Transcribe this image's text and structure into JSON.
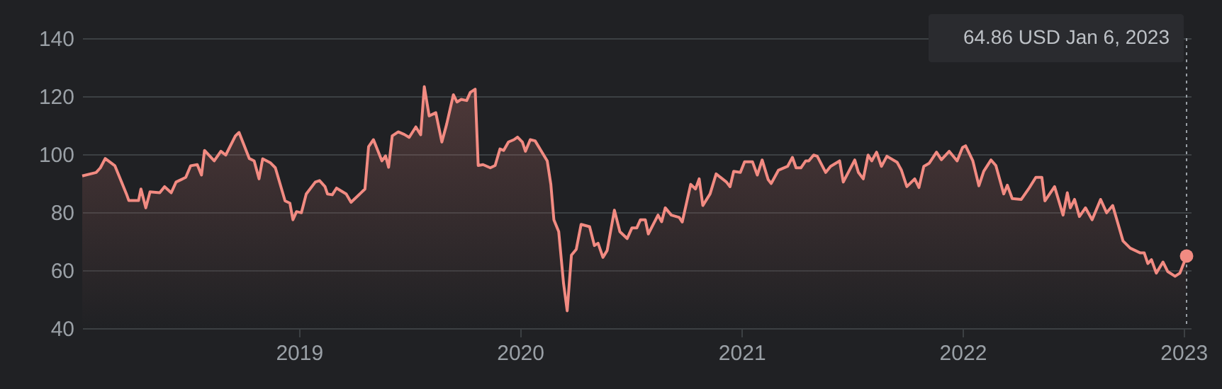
{
  "chart_data": {
    "type": "area",
    "color": "#f28b82",
    "grid": "y",
    "xlim": [
      "2018-01-08",
      "2023-01-13"
    ],
    "xticks": [
      "2019",
      "2020",
      "2021",
      "2022",
      "2023"
    ],
    "ylim": [
      40,
      140
    ],
    "yticks": [
      40,
      60,
      80,
      100,
      120,
      140
    ],
    "x": [
      "2018-01-08",
      "2018-01-31",
      "2018-02-07",
      "2018-02-15",
      "2018-03-03",
      "2018-03-22",
      "2018-03-26",
      "2018-04-11",
      "2018-04-15",
      "2018-04-23",
      "2018-04-30",
      "2018-05-16",
      "2018-05-24",
      "2018-06-04",
      "2018-06-12",
      "2018-06-28",
      "2018-07-06",
      "2018-07-17",
      "2018-07-24",
      "2018-07-29",
      "2018-08-14",
      "2018-08-25",
      "2018-09-02",
      "2018-09-18",
      "2018-09-24",
      "2018-10-11",
      "2018-10-19",
      "2018-10-27",
      "2018-11-02",
      "2018-11-15",
      "2018-11-23",
      "2018-12-09",
      "2018-12-17",
      "2018-12-22",
      "2018-12-28",
      "2019-01-05",
      "2019-01-13",
      "2019-01-28",
      "2019-02-04",
      "2019-02-13",
      "2019-02-17",
      "2019-02-25",
      "2019-03-04",
      "2019-03-20",
      "2019-03-28",
      "2019-04-20",
      "2019-04-26",
      "2019-05-04",
      "2019-05-18",
      "2019-05-24",
      "2019-05-29",
      "2019-06-04",
      "2019-06-14",
      "2019-06-24",
      "2019-07-02",
      "2019-07-13",
      "2019-07-21",
      "2019-07-27",
      "2019-08-04",
      "2019-08-15",
      "2019-08-25",
      "2019-09-02",
      "2019-09-13",
      "2019-09-19",
      "2019-09-26",
      "2019-10-05",
      "2019-10-11",
      "2019-10-19",
      "2019-10-24",
      "2019-11-01",
      "2019-11-13",
      "2019-11-21",
      "2019-11-29",
      "2019-12-05",
      "2019-12-13",
      "2019-12-22",
      "2019-12-28",
      "2020-01-05",
      "2020-01-10",
      "2020-01-18",
      "2020-01-26",
      "2020-02-15",
      "2020-02-21",
      "2020-02-26",
      "2020-03-05",
      "2020-03-13",
      "2020-03-19",
      "2020-03-26",
      "2020-04-03",
      "2020-04-11",
      "2020-04-25",
      "2020-05-03",
      "2020-05-09",
      "2020-05-17",
      "2020-05-24",
      "2020-06-05",
      "2020-06-14",
      "2020-06-26",
      "2020-07-04",
      "2020-07-12",
      "2020-07-18",
      "2020-07-26",
      "2020-07-31",
      "2020-08-16",
      "2020-08-22",
      "2020-08-28",
      "2020-09-07",
      "2020-09-20",
      "2020-09-25",
      "2020-10-09",
      "2020-10-17",
      "2020-10-23",
      "2020-10-29",
      "2020-11-10",
      "2020-11-20",
      "2020-12-07",
      "2020-12-13",
      "2020-12-19",
      "2020-12-30",
      "2021-01-06",
      "2021-01-19",
      "2021-01-27",
      "2021-02-04",
      "2021-02-14",
      "2021-02-19",
      "2021-03-03",
      "2021-03-18",
      "2021-03-26",
      "2021-04-01",
      "2021-04-09",
      "2021-04-17",
      "2021-04-22",
      "2021-04-30",
      "2021-05-06",
      "2021-05-20",
      "2021-05-28",
      "2021-06-12",
      "2021-06-18",
      "2021-07-07",
      "2021-07-13",
      "2021-07-21",
      "2021-07-29",
      "2021-08-04",
      "2021-08-12",
      "2021-08-20",
      "2021-08-29",
      "2021-09-15",
      "2021-09-22",
      "2021-10-01",
      "2021-10-14",
      "2021-10-21",
      "2021-10-29",
      "2021-11-07",
      "2021-11-19",
      "2021-11-27",
      "2021-12-10",
      "2021-12-23",
      "2022-01-01",
      "2022-01-06",
      "2022-01-18",
      "2022-01-28",
      "2022-02-05",
      "2022-02-17",
      "2022-02-25",
      "2022-03-10",
      "2022-03-16",
      "2022-03-24",
      "2022-04-08",
      "2022-04-20",
      "2022-05-02",
      "2022-05-12",
      "2022-05-17",
      "2022-06-02",
      "2022-06-16",
      "2022-06-23",
      "2022-06-28",
      "2022-07-05",
      "2022-07-13",
      "2022-07-23",
      "2022-08-03",
      "2022-08-17",
      "2022-08-27",
      "2022-09-06",
      "2022-09-23",
      "2022-10-05",
      "2022-10-21",
      "2022-10-28",
      "2022-11-03",
      "2022-11-09",
      "2022-11-17",
      "2022-11-28",
      "2022-12-06",
      "2022-12-18",
      "2022-12-26",
      "2023-01-06"
    ],
    "values": [
      92.5,
      93.7,
      95.3,
      98.5,
      96,
      86.3,
      84,
      84,
      88,
      81.5,
      87,
      86.7,
      88.8,
      86.7,
      90.4,
      92,
      96,
      96.4,
      92.8,
      101.3,
      97.7,
      101,
      99.7,
      106.3,
      107.5,
      98.5,
      97.7,
      91.5,
      98.4,
      97,
      95.3,
      83.9,
      83.1,
      77.4,
      80.2,
      79.8,
      86.3,
      90.4,
      90.9,
      88.8,
      86.3,
      86,
      88.3,
      86.3,
      83.4,
      88,
      102.6,
      105,
      97.7,
      99.4,
      95.5,
      106.3,
      107.7,
      106.8,
      105.8,
      109.4,
      106.7,
      123.3,
      113.2,
      114.3,
      104.2,
      110.4,
      120.5,
      118,
      118.9,
      118.5,
      121.3,
      122.4,
      96.1,
      96.4,
      95.3,
      96.1,
      101.8,
      101.3,
      104.2,
      105,
      105.9,
      104.2,
      101,
      105,
      104.6,
      97.7,
      89.6,
      77.4,
      73.3,
      55.4,
      46,
      65.2,
      67.2,
      75.8,
      75,
      68.5,
      69.3,
      64.4,
      66.8,
      80.7,
      73.3,
      70.9,
      74.6,
      74.6,
      77.4,
      77.4,
      72.5,
      79,
      76.7,
      81.5,
      79,
      78.2,
      76.6,
      89.6,
      88,
      91.5,
      82.3,
      86.3,
      93.2,
      90.4,
      88.8,
      94.1,
      93.7,
      97.4,
      97.4,
      92.8,
      98,
      91.2,
      89.9,
      94.5,
      95.8,
      98.9,
      95.3,
      95.3,
      97.7,
      97.7,
      99.7,
      99.3,
      93.7,
      95.8,
      97.7,
      90.4,
      98,
      93.7,
      91.5,
      99.7,
      97.7,
      100.7,
      95.8,
      99.3,
      97.2,
      94.5,
      88.8,
      91.5,
      88.5,
      95.8,
      96.9,
      100.7,
      98.1,
      101,
      97.7,
      102.3,
      102.9,
      97.7,
      89.1,
      94.1,
      98,
      96.1,
      86.3,
      89.3,
      84.7,
      84.4,
      88,
      92,
      92,
      83.9,
      88.8,
      79,
      86.7,
      81.5,
      84.4,
      78.5,
      81.5,
      77.4,
      84.4,
      79.8,
      82.3,
      70.1,
      67.6,
      66,
      66,
      62.3,
      63.6,
      59,
      62.8,
      59.5,
      57.9,
      59,
      64.86
    ],
    "ref_lines": [
      {
        "axis": "x",
        "value": "2023-01-06",
        "line_style": "dotted"
      }
    ],
    "annotations": [
      "64.86 USD  Jan 6, 2023"
    ]
  }
}
